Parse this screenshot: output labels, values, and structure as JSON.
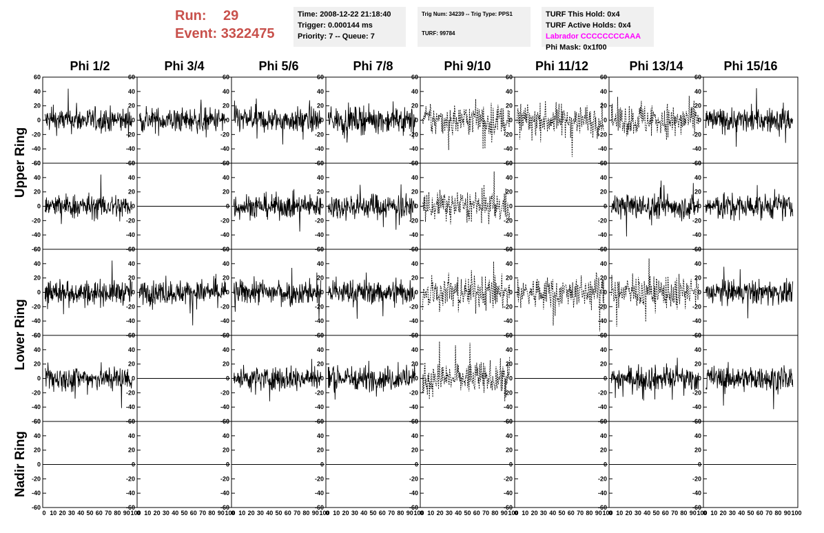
{
  "header": {
    "run_label": "Run:",
    "run_value": "29",
    "event_label": "Event:",
    "event_value": "3322475",
    "time_line": "Time: 2008-12-22 21:18:40",
    "trigger_line": "Trigger: 0.000144 ms",
    "priority_line": "Priority: 7 -- Queue: 7",
    "trig_line": "Trig Num: 34239 -- Trig Type: PPS1",
    "turf_line": "TURF: 99784",
    "turf_hold": "TURF This Hold: 0x4",
    "turf_active": "TURF Active Holds: 0x4",
    "labrador": "Labrador CCCCCCCCAAA",
    "phi_mask": "Phi Mask: 0x1f00"
  },
  "chart_data": {
    "type": "line",
    "phi_labels": [
      "Phi 1/2",
      "Phi 3/4",
      "Phi 5/6",
      "Phi 7/8",
      "Phi 9/10",
      "Phi 11/12",
      "Phi 13/14",
      "Phi 15/16"
    ],
    "ring_labels": [
      {
        "text": "Upper Ring",
        "rows": [
          0,
          1
        ]
      },
      {
        "text": "Lower Ring",
        "rows": [
          2,
          3
        ]
      },
      {
        "text": "Nadir Ring",
        "rows": [
          4
        ]
      }
    ],
    "rows": 5,
    "xlim": [
      0,
      100
    ],
    "ylim": [
      -60,
      60
    ],
    "xticks": [
      0,
      10,
      20,
      30,
      40,
      50,
      60,
      70,
      80,
      90,
      100
    ],
    "yticks": [
      -60,
      -40,
      -20,
      0,
      20,
      40,
      60
    ],
    "panels": [
      [
        "noise",
        "noise",
        "noise",
        "noise",
        "dashed",
        "dashed",
        "dashed",
        "noise"
      ],
      [
        "noise",
        "flat",
        "noise",
        "noise",
        "dashed",
        "flat",
        "noise",
        "noise"
      ],
      [
        "noise",
        "noise",
        "noise",
        "noise",
        "dashed",
        "dashed",
        "dashed",
        "noise"
      ],
      [
        "noise",
        "flat",
        "noise",
        "noise",
        "dashed",
        "flat",
        "noise",
        "noise"
      ],
      [
        "flat",
        "flat",
        "flat",
        "flat",
        "flat",
        "flat",
        "flat",
        "flat"
      ]
    ],
    "signal_colors": {
      "trace": "#000000",
      "axis": "#000000"
    }
  }
}
